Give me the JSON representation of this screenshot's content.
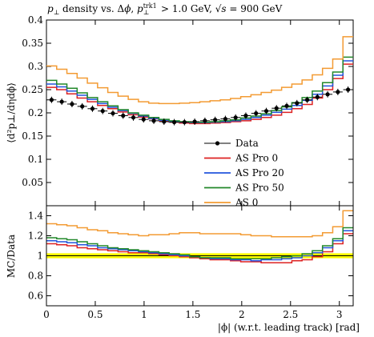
{
  "chart_data": [
    {
      "type": "line",
      "title_parts": {
        "p": "p",
        "perp": "⊥",
        "text1": " density vs. Δ",
        "phi": "ϕ",
        "comma": ", ",
        "trk": "trk1",
        "cut": " > 1.0 GeV, ",
        "sqrt_s": "√s",
        "energy": " = 900 GeV"
      },
      "ylabel": "⟨d²p⊥/dηdϕ⟩",
      "xlim": [
        0,
        3.1416
      ],
      "ylim": [
        0,
        0.4
      ],
      "yticks": [
        "0.05",
        "0.1",
        "0.15",
        "0.2",
        "0.25",
        "0.3",
        "0.35",
        "0.4"
      ],
      "yticks_values": [
        0.05,
        0.1,
        0.15,
        0.2,
        0.25,
        0.3,
        0.35,
        0.4
      ],
      "legend_position": "bottom-right",
      "x": [
        0.0524,
        0.1571,
        0.2618,
        0.3665,
        0.4712,
        0.576,
        0.6807,
        0.7854,
        0.8901,
        0.9948,
        1.0996,
        1.2043,
        1.309,
        1.4137,
        1.5184,
        1.6232,
        1.7279,
        1.8326,
        1.9373,
        2.042,
        2.1468,
        2.2515,
        2.3562,
        2.4609,
        2.5656,
        2.6704,
        2.7751,
        2.8798,
        2.9845,
        3.0892
      ],
      "series": [
        {
          "name": "Data",
          "color": "#000000",
          "style": "points",
          "values": [
            0.228,
            0.224,
            0.219,
            0.214,
            0.209,
            0.204,
            0.199,
            0.194,
            0.19,
            0.186,
            0.183,
            0.181,
            0.18,
            0.18,
            0.181,
            0.183,
            0.185,
            0.187,
            0.19,
            0.194,
            0.199,
            0.204,
            0.21,
            0.215,
            0.221,
            0.228,
            0.234,
            0.24,
            0.245,
            0.25
          ]
        },
        {
          "name": "AS Pro 0",
          "color": "#dd2222",
          "style": "step",
          "values": [
            0.255,
            0.25,
            0.241,
            0.232,
            0.224,
            0.216,
            0.209,
            0.202,
            0.196,
            0.191,
            0.187,
            0.183,
            0.18,
            0.178,
            0.177,
            0.177,
            0.178,
            0.179,
            0.181,
            0.183,
            0.186,
            0.19,
            0.195,
            0.201,
            0.209,
            0.218,
            0.232,
            0.25,
            0.274,
            0.305
          ]
        },
        {
          "name": "AS Pro 20",
          "color": "#2255dd",
          "style": "step",
          "values": [
            0.262,
            0.256,
            0.247,
            0.238,
            0.229,
            0.22,
            0.212,
            0.205,
            0.199,
            0.193,
            0.188,
            0.184,
            0.181,
            0.18,
            0.179,
            0.179,
            0.18,
            0.181,
            0.183,
            0.186,
            0.19,
            0.195,
            0.201,
            0.208,
            0.216,
            0.227,
            0.24,
            0.258,
            0.281,
            0.312
          ]
        },
        {
          "name": "AS Pro 50",
          "color": "#22882a",
          "style": "step",
          "values": [
            0.27,
            0.262,
            0.253,
            0.243,
            0.233,
            0.224,
            0.215,
            0.207,
            0.2,
            0.195,
            0.19,
            0.186,
            0.183,
            0.181,
            0.18,
            0.18,
            0.181,
            0.183,
            0.185,
            0.189,
            0.193,
            0.198,
            0.205,
            0.213,
            0.222,
            0.233,
            0.247,
            0.265,
            0.288,
            0.32
          ]
        },
        {
          "name": "AS 0",
          "color": "#f39b33",
          "style": "step",
          "values": [
            0.301,
            0.294,
            0.285,
            0.275,
            0.264,
            0.254,
            0.244,
            0.236,
            0.229,
            0.224,
            0.221,
            0.22,
            0.22,
            0.221,
            0.222,
            0.224,
            0.226,
            0.228,
            0.231,
            0.235,
            0.239,
            0.244,
            0.249,
            0.255,
            0.262,
            0.271,
            0.282,
            0.296,
            0.316,
            0.364
          ]
        }
      ]
    },
    {
      "type": "line",
      "ylabel": "MC/Data",
      "xlabel": "|ϕ| (w.r.t. leading track) [rad]",
      "xlim": [
        0,
        3.1416
      ],
      "ylim": [
        0.5,
        1.5
      ],
      "xticks": [
        "0",
        "0.5",
        "1",
        "1.5",
        "2",
        "2.5",
        "3"
      ],
      "xticks_values": [
        0,
        0.5,
        1,
        1.5,
        2,
        2.5,
        3
      ],
      "yticks": [
        "0.6",
        "0.8",
        "1",
        "1.2",
        "1.4"
      ],
      "yticks_values": [
        0.6,
        0.8,
        1.0,
        1.2,
        1.4
      ],
      "band": {
        "color": "#ffff00",
        "lower": 0.975,
        "upper": 1.025
      },
      "series": [
        {
          "name": "AS Pro 0",
          "color": "#dd2222",
          "values": [
            1.12,
            1.11,
            1.1,
            1.08,
            1.07,
            1.06,
            1.05,
            1.04,
            1.03,
            1.03,
            1.02,
            1.01,
            1.0,
            0.99,
            0.98,
            0.97,
            0.96,
            0.96,
            0.95,
            0.94,
            0.94,
            0.93,
            0.93,
            0.93,
            0.95,
            0.96,
            0.99,
            1.04,
            1.12,
            1.22
          ]
        },
        {
          "name": "AS Pro 20",
          "color": "#2255dd",
          "values": [
            1.15,
            1.14,
            1.13,
            1.11,
            1.1,
            1.08,
            1.07,
            1.06,
            1.05,
            1.04,
            1.03,
            1.02,
            1.01,
            1.0,
            0.99,
            0.98,
            0.97,
            0.97,
            0.96,
            0.96,
            0.95,
            0.96,
            0.96,
            0.97,
            0.98,
            1.0,
            1.03,
            1.08,
            1.15,
            1.25
          ]
        },
        {
          "name": "AS Pro 50",
          "color": "#22882a",
          "values": [
            1.18,
            1.17,
            1.16,
            1.14,
            1.12,
            1.1,
            1.08,
            1.07,
            1.06,
            1.05,
            1.04,
            1.03,
            1.02,
            1.01,
            0.99,
            0.98,
            0.98,
            0.98,
            0.97,
            0.97,
            0.97,
            0.97,
            0.98,
            0.99,
            1.0,
            1.02,
            1.05,
            1.1,
            1.17,
            1.28
          ]
        },
        {
          "name": "AS 0",
          "color": "#f39b33",
          "values": [
            1.32,
            1.31,
            1.3,
            1.28,
            1.26,
            1.25,
            1.23,
            1.22,
            1.21,
            1.2,
            1.21,
            1.21,
            1.22,
            1.23,
            1.23,
            1.22,
            1.22,
            1.22,
            1.22,
            1.21,
            1.2,
            1.2,
            1.19,
            1.19,
            1.19,
            1.19,
            1.2,
            1.23,
            1.29,
            1.45
          ]
        }
      ]
    }
  ]
}
